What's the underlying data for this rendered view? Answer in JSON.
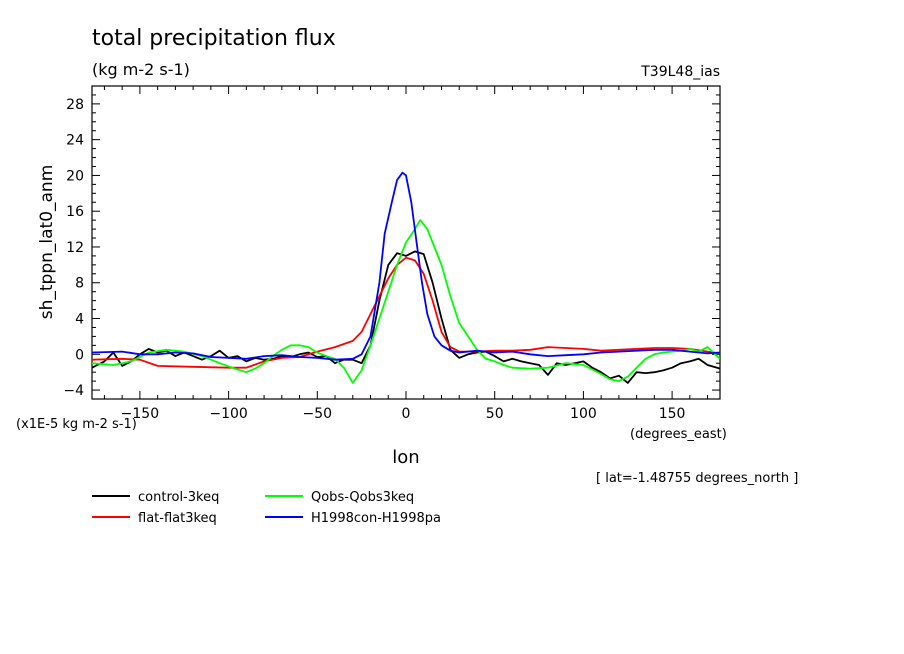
{
  "chart_data": {
    "type": "line",
    "title": "total precipitation flux",
    "subtitle": "(kg m-2 s-1)",
    "tag": "T39L48_ias",
    "ylabel": "sh_tppn_lat0_anm",
    "yunit_note": "(x1E-5 kg m-2 s-1)",
    "xlabel": "lon",
    "xunit": "(degrees_east)",
    "lat_note": "[ lat=-1.48755 degrees_north ]",
    "xlim": [
      -177,
      177
    ],
    "ylim": [
      -5,
      30
    ],
    "x_ticks": [
      -150,
      -100,
      -50,
      0,
      50,
      100,
      150
    ],
    "y_ticks": [
      -4,
      0,
      4,
      8,
      12,
      16,
      20,
      24,
      28
    ],
    "legend_position": "bottom-left",
    "grid": false,
    "series": [
      {
        "name": "control-3keq",
        "color": "#000000",
        "points": [
          [
            -177,
            -1.5
          ],
          [
            -170,
            -0.8
          ],
          [
            -165,
            0.2
          ],
          [
            -160,
            -1.3
          ],
          [
            -155,
            -0.8
          ],
          [
            -150,
            0
          ],
          [
            -145,
            0.6
          ],
          [
            -140,
            0.2
          ],
          [
            -135,
            0.4
          ],
          [
            -130,
            -0.2
          ],
          [
            -125,
            0.2
          ],
          [
            -120,
            -0.2
          ],
          [
            -115,
            -0.6
          ],
          [
            -110,
            -0.2
          ],
          [
            -105,
            0.4
          ],
          [
            -100,
            -0.4
          ],
          [
            -95,
            -0.2
          ],
          [
            -90,
            -0.8
          ],
          [
            -85,
            -0.4
          ],
          [
            -80,
            -0.6
          ],
          [
            -75,
            -0.5
          ],
          [
            -70,
            -0.2
          ],
          [
            -65,
            -0.3
          ],
          [
            -60,
            0
          ],
          [
            -55,
            0.2
          ],
          [
            -50,
            -0.3
          ],
          [
            -45,
            -0.2
          ],
          [
            -40,
            -1
          ],
          [
            -35,
            -0.6
          ],
          [
            -30,
            -0.6
          ],
          [
            -25,
            -1
          ],
          [
            -20,
            1
          ],
          [
            -15,
            6
          ],
          [
            -10,
            10
          ],
          [
            -5,
            11.3
          ],
          [
            0,
            11
          ],
          [
            5,
            11.5
          ],
          [
            10,
            11.2
          ],
          [
            15,
            8
          ],
          [
            20,
            4
          ],
          [
            25,
            0.5
          ],
          [
            30,
            -0.4
          ],
          [
            35,
            0
          ],
          [
            40,
            0.2
          ],
          [
            45,
            0.3
          ],
          [
            50,
            -0.2
          ],
          [
            55,
            -0.8
          ],
          [
            60,
            -0.5
          ],
          [
            65,
            -0.8
          ],
          [
            70,
            -1
          ],
          [
            75,
            -1.2
          ],
          [
            80,
            -2.3
          ],
          [
            85,
            -1
          ],
          [
            90,
            -1.2
          ],
          [
            95,
            -1
          ],
          [
            100,
            -0.8
          ],
          [
            105,
            -1.5
          ],
          [
            110,
            -2
          ],
          [
            115,
            -2.7
          ],
          [
            120,
            -2.4
          ],
          [
            125,
            -3.2
          ],
          [
            130,
            -2
          ],
          [
            135,
            -2.1
          ],
          [
            140,
            -2
          ],
          [
            145,
            -1.8
          ],
          [
            150,
            -1.5
          ],
          [
            155,
            -1
          ],
          [
            160,
            -0.8
          ],
          [
            165,
            -0.5
          ],
          [
            170,
            -1.2
          ],
          [
            177,
            -1.6
          ]
        ]
      },
      {
        "name": "flat-flat3keq",
        "color": "#ff0000",
        "points": [
          [
            -177,
            -0.6
          ],
          [
            -160,
            -0.5
          ],
          [
            -150,
            -0.6
          ],
          [
            -140,
            -1.3
          ],
          [
            -120,
            -1.4
          ],
          [
            -100,
            -1.5
          ],
          [
            -90,
            -1.5
          ],
          [
            -80,
            -0.8
          ],
          [
            -70,
            -0.4
          ],
          [
            -60,
            -0.3
          ],
          [
            -50,
            0.3
          ],
          [
            -40,
            0.8
          ],
          [
            -30,
            1.5
          ],
          [
            -25,
            2.5
          ],
          [
            -20,
            4.5
          ],
          [
            -15,
            6.5
          ],
          [
            -10,
            8.5
          ],
          [
            -5,
            10
          ],
          [
            0,
            10.8
          ],
          [
            5,
            10.5
          ],
          [
            10,
            9
          ],
          [
            15,
            6
          ],
          [
            20,
            2.5
          ],
          [
            25,
            0.8
          ],
          [
            30,
            0.3
          ],
          [
            40,
            0.3
          ],
          [
            50,
            0.4
          ],
          [
            60,
            0.4
          ],
          [
            70,
            0.5
          ],
          [
            80,
            0.8
          ],
          [
            90,
            0.7
          ],
          [
            100,
            0.6
          ],
          [
            110,
            0.4
          ],
          [
            120,
            0.5
          ],
          [
            130,
            0.6
          ],
          [
            140,
            0.7
          ],
          [
            150,
            0.7
          ],
          [
            160,
            0.6
          ],
          [
            170,
            0.3
          ],
          [
            177,
            0.1
          ]
        ]
      },
      {
        "name": "Qobs-Qobs3keq",
        "color": "#00ff00",
        "points": [
          [
            -177,
            -1
          ],
          [
            -165,
            -1.2
          ],
          [
            -155,
            -0.8
          ],
          [
            -145,
            0.2
          ],
          [
            -135,
            0.5
          ],
          [
            -125,
            0.3
          ],
          [
            -115,
            -0.2
          ],
          [
            -105,
            -1
          ],
          [
            -95,
            -1.7
          ],
          [
            -90,
            -2
          ],
          [
            -85,
            -1.6
          ],
          [
            -80,
            -1
          ],
          [
            -75,
            -0.2
          ],
          [
            -70,
            0.5
          ],
          [
            -65,
            1
          ],
          [
            -60,
            1
          ],
          [
            -55,
            0.8
          ],
          [
            -50,
            0.2
          ],
          [
            -45,
            -0.2
          ],
          [
            -40,
            -0.5
          ],
          [
            -35,
            -1.5
          ],
          [
            -30,
            -3.2
          ],
          [
            -25,
            -1.8
          ],
          [
            -20,
            1
          ],
          [
            -15,
            4
          ],
          [
            -10,
            7
          ],
          [
            -5,
            10
          ],
          [
            0,
            12.5
          ],
          [
            5,
            14
          ],
          [
            8,
            15
          ],
          [
            12,
            14
          ],
          [
            15,
            12.5
          ],
          [
            20,
            10
          ],
          [
            25,
            6.5
          ],
          [
            30,
            3.5
          ],
          [
            35,
            2
          ],
          [
            40,
            0.5
          ],
          [
            45,
            -0.5
          ],
          [
            50,
            -0.8
          ],
          [
            55,
            -1.2
          ],
          [
            60,
            -1.5
          ],
          [
            70,
            -1.6
          ],
          [
            80,
            -1.5
          ],
          [
            90,
            -1
          ],
          [
            100,
            -1.2
          ],
          [
            110,
            -2.2
          ],
          [
            115,
            -2.8
          ],
          [
            120,
            -3
          ],
          [
            125,
            -2.5
          ],
          [
            130,
            -1.5
          ],
          [
            135,
            -0.5
          ],
          [
            140,
            0
          ],
          [
            145,
            0.2
          ],
          [
            150,
            0.3
          ],
          [
            155,
            0.4
          ],
          [
            160,
            0.6
          ],
          [
            165,
            0.3
          ],
          [
            170,
            0.8
          ],
          [
            177,
            -0.5
          ]
        ]
      },
      {
        "name": "H1998con-H1998pa",
        "color": "#0000ff",
        "points": [
          [
            -177,
            0.2
          ],
          [
            -160,
            0.3
          ],
          [
            -150,
            0
          ],
          [
            -140,
            0
          ],
          [
            -130,
            0.2
          ],
          [
            -120,
            0.1
          ],
          [
            -110,
            -0.3
          ],
          [
            -100,
            -0.4
          ],
          [
            -90,
            -0.5
          ],
          [
            -80,
            -0.2
          ],
          [
            -70,
            -0.1
          ],
          [
            -60,
            -0.3
          ],
          [
            -50,
            -0.4
          ],
          [
            -40,
            -0.6
          ],
          [
            -30,
            -0.5
          ],
          [
            -25,
            0
          ],
          [
            -20,
            2
          ],
          [
            -15,
            8
          ],
          [
            -12,
            13.5
          ],
          [
            -8,
            17
          ],
          [
            -5,
            19.5
          ],
          [
            -2,
            20.3
          ],
          [
            0,
            20
          ],
          [
            3,
            17
          ],
          [
            6,
            12.5
          ],
          [
            9,
            8
          ],
          [
            12,
            4.5
          ],
          [
            16,
            2
          ],
          [
            20,
            1
          ],
          [
            25,
            0.4
          ],
          [
            30,
            0.2
          ],
          [
            40,
            0.4
          ],
          [
            50,
            0.2
          ],
          [
            60,
            0.3
          ],
          [
            70,
            0
          ],
          [
            80,
            -0.2
          ],
          [
            90,
            -0.1
          ],
          [
            100,
            0
          ],
          [
            110,
            0.2
          ],
          [
            120,
            0.3
          ],
          [
            130,
            0.4
          ],
          [
            140,
            0.5
          ],
          [
            150,
            0.5
          ],
          [
            160,
            0.3
          ],
          [
            170,
            0.1
          ],
          [
            177,
            0.2
          ]
        ]
      }
    ]
  }
}
